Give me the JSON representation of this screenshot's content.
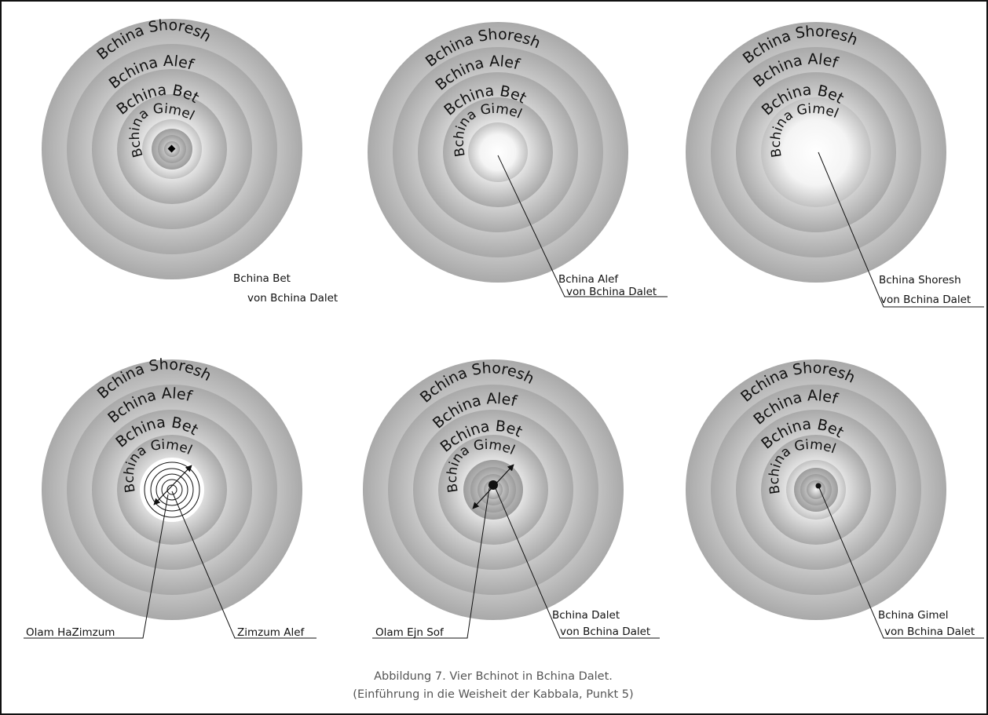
{
  "caption": {
    "line1": "Abbildung 7. Vier Bchinot in Bchina Dalet.",
    "line2": "(Einführung in die Weisheit der Kabbala, Punkt 5)"
  },
  "ring_labels": [
    "Bchina Shoresh",
    "Bchina Alef",
    "Bchina Bet",
    "Bchina Gimel"
  ],
  "colors": {
    "ring_outer": "#a9a9a9",
    "ring_inner": "#ffffff",
    "line": "#111111",
    "caption": "#555555"
  },
  "panels": [
    {
      "id": "p1",
      "center": "dot",
      "labels": [
        {
          "line1": "Bchina Bet",
          "line2": "von Bchina Dalet"
        }
      ]
    },
    {
      "id": "p2",
      "center": "white",
      "labels": [
        {
          "line1": "Bchina Alef",
          "line2": "von Bchina Dalet"
        }
      ]
    },
    {
      "id": "p3",
      "center": "white",
      "labels": [
        {
          "line1": "Bchina Shoresh",
          "line2": "von Bchina Dalet"
        }
      ]
    },
    {
      "id": "p4",
      "center": "zimzum",
      "labels": [
        {
          "line1": "Olam HaZimzum"
        },
        {
          "line1": "Zimzum Alef"
        }
      ]
    },
    {
      "id": "p5",
      "center": "dark-dot",
      "labels": [
        {
          "line1": "Olam Ejn Sof"
        },
        {
          "line1": "Bchina Dalet",
          "line2": "von Bchina Dalet"
        }
      ]
    },
    {
      "id": "p6",
      "center": "dot",
      "labels": [
        {
          "line1": "Bchina Gimel",
          "line2": "von Bchina Dalet"
        }
      ]
    }
  ]
}
